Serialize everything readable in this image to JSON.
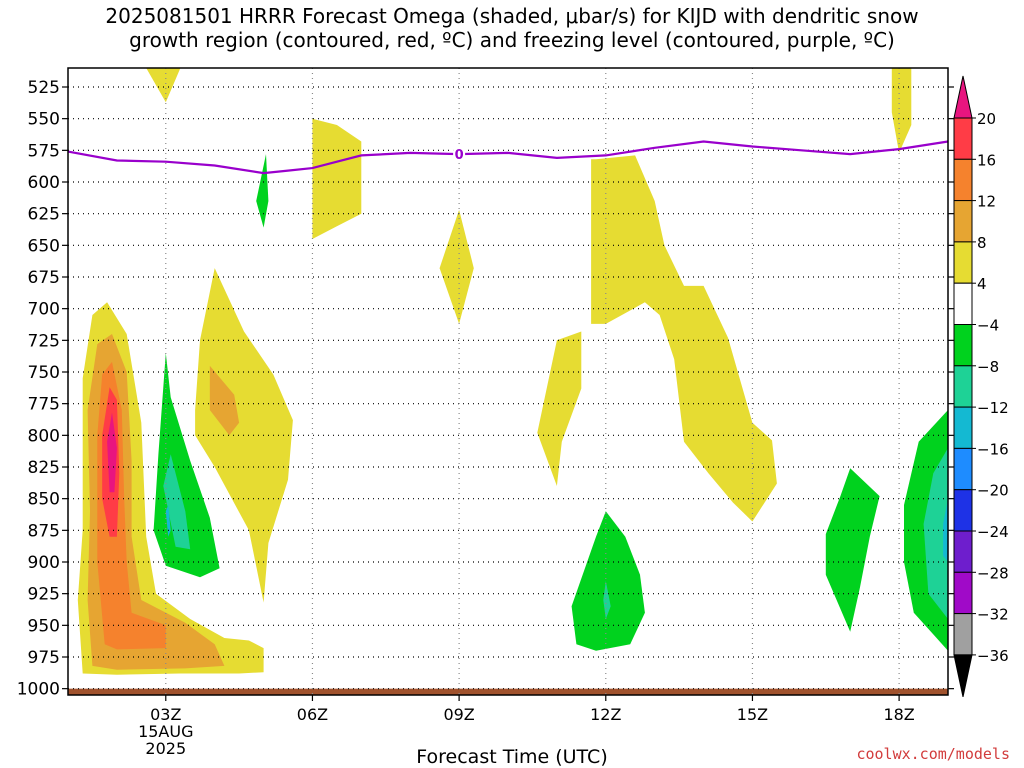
{
  "title": {
    "line1": "2025081501 HRRR Forecast Omega (shaded, μbar/s) for KIJD with dendritic snow",
    "line2": "growth region (contoured, red, ºC) and freezing level (contoured, purple, ºC)"
  },
  "footer": {
    "credit": "coolwx.com/models"
  },
  "chart_data": {
    "type": "heatmap",
    "title": "2025081501 HRRR Forecast Omega (shaded, μbar/s) for KIJD with dendritic snow growth region (contoured, red, ºC) and freezing level (contoured, purple, ºC)",
    "xlabel": "Forecast Time (UTC)",
    "ylabel": "",
    "x_axis": {
      "range_hours_utc": [
        1,
        19
      ],
      "ticks": [
        {
          "hour": 3,
          "label": "03Z",
          "sub1": "15AUG",
          "sub2": "2025"
        },
        {
          "hour": 6,
          "label": "06Z"
        },
        {
          "hour": 9,
          "label": "09Z"
        },
        {
          "hour": 12,
          "label": "12Z"
        },
        {
          "hour": 15,
          "label": "15Z"
        },
        {
          "hour": 18,
          "label": "18Z"
        }
      ],
      "grid": true
    },
    "y_axis": {
      "units": "mb",
      "range": [
        1005,
        510
      ],
      "ticks": [
        525,
        550,
        575,
        600,
        625,
        650,
        675,
        700,
        725,
        750,
        775,
        800,
        825,
        850,
        875,
        900,
        925,
        950,
        975,
        1000
      ],
      "grid": true
    },
    "colorbar": {
      "labels": [
        "20",
        "16",
        "12",
        "8",
        "4",
        "−4",
        "−8",
        "−12",
        "−16",
        "−20",
        "−24",
        "−28",
        "−32",
        "−36"
      ],
      "top_triangle_color": "#e8157f",
      "bottom_triangle_color": "#000000",
      "segments": [
        {
          "range": [
            16,
            20
          ],
          "color": "#ff3c46"
        },
        {
          "range": [
            12,
            16
          ],
          "color": "#f5822d"
        },
        {
          "range": [
            8,
            12
          ],
          "color": "#e6a532"
        },
        {
          "range": [
            4,
            8
          ],
          "color": "#e6dc32"
        },
        {
          "range": [
            -4,
            4
          ],
          "color": "#ffffff"
        },
        {
          "range": [
            -8,
            -4
          ],
          "color": "#00d21e"
        },
        {
          "range": [
            -12,
            -8
          ],
          "color": "#1ed296"
        },
        {
          "range": [
            -16,
            -12
          ],
          "color": "#14b9d2"
        },
        {
          "range": [
            -20,
            -16
          ],
          "color": "#1e8cff"
        },
        {
          "range": [
            -24,
            -20
          ],
          "color": "#1e32e6"
        },
        {
          "range": [
            -28,
            -24
          ],
          "color": "#6e1ecd"
        },
        {
          "range": [
            -32,
            -28
          ],
          "color": "#a00ac8"
        },
        {
          "range": [
            -36,
            -32
          ],
          "color": "#a0a0a0"
        }
      ]
    },
    "freezing_level": {
      "value_label": "0",
      "color": "#9900cc",
      "label_at": [
        9,
        578
      ],
      "points": [
        [
          1,
          576
        ],
        [
          2,
          583
        ],
        [
          3,
          584
        ],
        [
          4,
          587
        ],
        [
          5,
          593
        ],
        [
          5.5,
          591
        ],
        [
          6,
          589
        ],
        [
          6.5,
          584
        ],
        [
          7,
          579
        ],
        [
          8,
          577
        ],
        [
          9,
          578
        ],
        [
          10,
          577
        ],
        [
          11,
          581
        ],
        [
          12,
          579
        ],
        [
          13,
          573
        ],
        [
          14,
          568
        ],
        [
          15,
          572
        ],
        [
          16,
          575
        ],
        [
          17,
          578
        ],
        [
          18,
          574
        ],
        [
          19,
          568
        ]
      ]
    },
    "terrain": {
      "color": "#a0522d",
      "top_mb": 1000
    },
    "omega_regions": [
      {
        "color": "#e6dc32",
        "points": [
          [
            2.6,
            510
          ],
          [
            3.3,
            510
          ],
          [
            3.0,
            537
          ]
        ]
      },
      {
        "color": "#e6dc32",
        "points": [
          [
            6.0,
            550
          ],
          [
            6.5,
            555
          ],
          [
            7.0,
            568
          ],
          [
            7.0,
            625
          ],
          [
            6.5,
            635
          ],
          [
            6.0,
            645
          ]
        ]
      },
      {
        "color": "#e6dc32",
        "points": [
          [
            17.85,
            510
          ],
          [
            18.25,
            510
          ],
          [
            18.25,
            555
          ],
          [
            18.0,
            577
          ],
          [
            17.85,
            545
          ]
        ]
      },
      {
        "color": "#e6dc32",
        "points": [
          [
            8.6,
            668
          ],
          [
            9.0,
            622
          ],
          [
            9.3,
            668
          ],
          [
            9.0,
            712
          ]
        ]
      },
      {
        "color": "#e6dc32",
        "points": [
          [
            11.8,
            582
          ],
          [
            12.6,
            579
          ],
          [
            13.0,
            615
          ],
          [
            13.2,
            650
          ],
          [
            13.6,
            682
          ],
          [
            14.0,
            682
          ],
          [
            14.5,
            723
          ],
          [
            15.0,
            790
          ],
          [
            15.4,
            804
          ],
          [
            15.5,
            838
          ],
          [
            15.0,
            868
          ],
          [
            14.6,
            853
          ],
          [
            14.1,
            830
          ],
          [
            13.6,
            805
          ],
          [
            13.4,
            740
          ],
          [
            13.1,
            705
          ],
          [
            12.8,
            695
          ],
          [
            12.0,
            712
          ],
          [
            11.7,
            712
          ],
          [
            11.7,
            582
          ]
        ]
      },
      {
        "color": "#e6dc32",
        "points": [
          [
            10.6,
            798
          ],
          [
            11.0,
            725
          ],
          [
            11.5,
            718
          ],
          [
            11.5,
            763
          ],
          [
            11.1,
            805
          ],
          [
            11.0,
            840
          ]
        ]
      },
      {
        "color": "#e6dc32",
        "points": [
          [
            3.6,
            780
          ],
          [
            3.7,
            725
          ],
          [
            4.0,
            668
          ],
          [
            4.6,
            718
          ],
          [
            5.2,
            752
          ],
          [
            5.6,
            788
          ],
          [
            5.5,
            835
          ],
          [
            5.1,
            885
          ],
          [
            5.0,
            932
          ],
          [
            4.7,
            875
          ],
          [
            4.0,
            825
          ],
          [
            3.6,
            800
          ]
        ]
      },
      {
        "color": "#e6dc32",
        "points": [
          [
            1.3,
            755
          ],
          [
            1.5,
            705
          ],
          [
            1.8,
            695
          ],
          [
            2.2,
            720
          ],
          [
            2.5,
            790
          ],
          [
            2.6,
            880
          ],
          [
            2.8,
            925
          ],
          [
            3.5,
            945
          ],
          [
            4.2,
            960
          ],
          [
            4.7,
            962
          ],
          [
            5.0,
            968
          ],
          [
            5.0,
            987
          ],
          [
            4.5,
            988
          ],
          [
            3.8,
            988
          ],
          [
            3.3,
            988
          ],
          [
            2.0,
            989
          ],
          [
            1.3,
            988
          ],
          [
            1.2,
            930
          ],
          [
            1.3,
            875
          ]
        ]
      },
      {
        "color": "#e6a532",
        "points": [
          [
            3.9,
            745
          ],
          [
            4.4,
            768
          ],
          [
            4.5,
            790
          ],
          [
            4.3,
            800
          ],
          [
            3.9,
            780
          ]
        ]
      },
      {
        "color": "#e6a532",
        "points": [
          [
            1.4,
            780
          ],
          [
            1.6,
            728
          ],
          [
            1.9,
            720
          ],
          [
            2.2,
            750
          ],
          [
            2.3,
            820
          ],
          [
            2.3,
            880
          ],
          [
            2.5,
            930
          ],
          [
            3.4,
            948
          ],
          [
            4.0,
            965
          ],
          [
            4.2,
            982
          ],
          [
            3.4,
            984
          ],
          [
            2.0,
            985
          ],
          [
            1.5,
            982
          ],
          [
            1.4,
            930
          ],
          [
            1.45,
            860
          ]
        ]
      },
      {
        "color": "#f5822d",
        "points": [
          [
            1.6,
            800
          ],
          [
            1.7,
            752
          ],
          [
            1.9,
            742
          ],
          [
            2.1,
            780
          ],
          [
            2.15,
            850
          ],
          [
            2.2,
            900
          ],
          [
            2.3,
            940
          ],
          [
            3.0,
            950
          ],
          [
            3.0,
            968
          ],
          [
            2.0,
            969
          ],
          [
            1.75,
            965
          ],
          [
            1.6,
            900
          ]
        ]
      },
      {
        "color": "#ff3c46",
        "points": [
          [
            1.7,
            800
          ],
          [
            1.85,
            762
          ],
          [
            2.0,
            772
          ],
          [
            2.05,
            830
          ],
          [
            2.0,
            880
          ],
          [
            1.85,
            880
          ],
          [
            1.7,
            850
          ]
        ]
      },
      {
        "color": "#e8157f",
        "points": [
          [
            1.8,
            805
          ],
          [
            1.9,
            782
          ],
          [
            2.0,
            810
          ],
          [
            1.95,
            845
          ],
          [
            1.85,
            845
          ]
        ]
      },
      {
        "color": "#00d21e",
        "points": [
          [
            4.85,
            615
          ],
          [
            5.05,
            578
          ],
          [
            5.1,
            615
          ],
          [
            5.0,
            636
          ]
        ]
      },
      {
        "color": "#00d21e",
        "points": [
          [
            2.85,
            815
          ],
          [
            3.0,
            735
          ],
          [
            3.1,
            770
          ],
          [
            3.5,
            820
          ],
          [
            3.9,
            865
          ],
          [
            4.1,
            905
          ],
          [
            3.7,
            912
          ],
          [
            3.0,
            903
          ],
          [
            2.75,
            875
          ]
        ]
      },
      {
        "color": "#1ed296",
        "points": [
          [
            2.95,
            840
          ],
          [
            3.1,
            815
          ],
          [
            3.4,
            860
          ],
          [
            3.5,
            890
          ],
          [
            3.2,
            888
          ]
        ]
      },
      {
        "color": "#14b9d2",
        "points": [
          [
            3.0,
            860
          ],
          [
            3.05,
            855
          ],
          [
            3.1,
            875
          ],
          [
            3.05,
            880
          ]
        ]
      },
      {
        "color": "#00d21e",
        "points": [
          [
            11.3,
            935
          ],
          [
            11.8,
            880
          ],
          [
            12.0,
            860
          ],
          [
            12.4,
            880
          ],
          [
            12.7,
            910
          ],
          [
            12.8,
            940
          ],
          [
            12.5,
            965
          ],
          [
            11.8,
            970
          ],
          [
            11.4,
            965
          ]
        ]
      },
      {
        "color": "#1ed296",
        "points": [
          [
            11.95,
            930
          ],
          [
            12.0,
            915
          ],
          [
            12.1,
            935
          ],
          [
            12.0,
            945
          ]
        ]
      },
      {
        "color": "#00d21e",
        "points": [
          [
            16.5,
            878
          ],
          [
            16.8,
            848
          ],
          [
            17.0,
            826
          ],
          [
            17.6,
            848
          ],
          [
            17.4,
            880
          ],
          [
            17.2,
            920
          ],
          [
            17.0,
            955
          ],
          [
            16.5,
            910
          ]
        ]
      },
      {
        "color": "#00d21e",
        "points": [
          [
            18.1,
            855
          ],
          [
            18.4,
            805
          ],
          [
            19.0,
            780
          ],
          [
            19.0,
            970
          ],
          [
            18.3,
            940
          ],
          [
            18.1,
            900
          ]
        ]
      },
      {
        "color": "#1ed296",
        "points": [
          [
            18.5,
            870
          ],
          [
            18.7,
            830
          ],
          [
            19.0,
            810
          ],
          [
            19.0,
            945
          ],
          [
            18.6,
            925
          ]
        ]
      },
      {
        "color": "#14b9d2",
        "points": [
          [
            18.9,
            870
          ],
          [
            19.0,
            850
          ],
          [
            19.0,
            900
          ],
          [
            18.9,
            895
          ]
        ]
      }
    ]
  }
}
